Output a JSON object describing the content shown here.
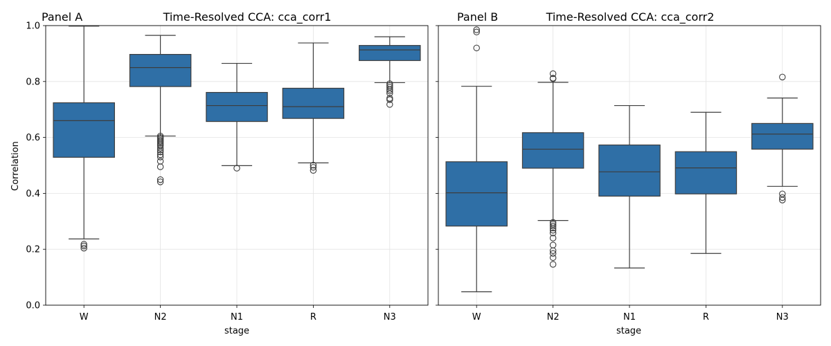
{
  "figure": {
    "panels": [
      "Panel A",
      "Panel B"
    ]
  },
  "chart_data": [
    {
      "type": "box",
      "panel_label": "Panel A",
      "title": "Time-Resolved CCA: cca_corr1",
      "xlabel": "stage",
      "ylabel": "Correlation",
      "categories": [
        "W",
        "N2",
        "N1",
        "R",
        "N3"
      ],
      "ylim": [
        0.0,
        1.0
      ],
      "yticks": [
        "0.0",
        "0.2",
        "0.4",
        "0.6",
        "0.8",
        "1.0"
      ],
      "ytick_values": [
        0.0,
        0.2,
        0.4,
        0.6,
        0.8,
        1.0
      ],
      "grid": true,
      "color": "#2f6fa6",
      "boxes": [
        {
          "stage": "W",
          "whisker_low": 0.237,
          "q1": 0.529,
          "median": 0.66,
          "q3": 0.724,
          "whisker_high": 0.998,
          "outliers": [
            0.218,
            0.212,
            0.204
          ]
        },
        {
          "stage": "N2",
          "whisker_low": 0.605,
          "q1": 0.782,
          "median": 0.85,
          "q3": 0.897,
          "whisker_high": 0.965,
          "outliers": [
            0.605,
            0.6,
            0.595,
            0.59,
            0.585,
            0.58,
            0.575,
            0.57,
            0.562,
            0.555,
            0.548,
            0.538,
            0.53,
            0.515,
            0.495,
            0.449,
            0.441
          ]
        },
        {
          "stage": "N1",
          "whisker_low": 0.499,
          "q1": 0.657,
          "median": 0.714,
          "q3": 0.761,
          "whisker_high": 0.865,
          "outliers": [
            0.49
          ]
        },
        {
          "stage": "R",
          "whisker_low": 0.509,
          "q1": 0.668,
          "median": 0.71,
          "q3": 0.776,
          "whisker_high": 0.938,
          "outliers": [
            0.501,
            0.493,
            0.482
          ]
        },
        {
          "stage": "N3",
          "whisker_low": 0.796,
          "q1": 0.875,
          "median": 0.913,
          "q3": 0.929,
          "whisker_high": 0.96,
          "outliers": [
            0.792,
            0.786,
            0.78,
            0.772,
            0.766,
            0.758,
            0.74,
            0.735,
            0.718
          ]
        }
      ]
    },
    {
      "type": "box",
      "panel_label": "Panel B",
      "title": "Time-Resolved CCA: cca_corr2",
      "xlabel": "stage",
      "ylabel": "",
      "categories": [
        "W",
        "N2",
        "N1",
        "R",
        "N3"
      ],
      "ylim": [
        0.0,
        1.0
      ],
      "yticks": [],
      "ytick_values": [
        0.0,
        0.2,
        0.4,
        0.6,
        0.8,
        1.0
      ],
      "grid": true,
      "color": "#2f6fa6",
      "boxes": [
        {
          "stage": "W",
          "whisker_low": 0.048,
          "q1": 0.283,
          "median": 0.402,
          "q3": 0.513,
          "whisker_high": 0.783,
          "outliers": [
            0.985,
            0.977,
            0.92
          ]
        },
        {
          "stage": "N2",
          "whisker_low": 0.303,
          "q1": 0.49,
          "median": 0.558,
          "q3": 0.617,
          "whisker_high": 0.797,
          "outliers": [
            0.828,
            0.812,
            0.81,
            0.296,
            0.29,
            0.283,
            0.276,
            0.268,
            0.258,
            0.24,
            0.215,
            0.195,
            0.185,
            0.17,
            0.146
          ]
        },
        {
          "stage": "N1",
          "whisker_low": 0.133,
          "q1": 0.39,
          "median": 0.477,
          "q3": 0.573,
          "whisker_high": 0.714,
          "outliers": []
        },
        {
          "stage": "R",
          "whisker_low": 0.185,
          "q1": 0.398,
          "median": 0.491,
          "q3": 0.549,
          "whisker_high": 0.69,
          "outliers": []
        },
        {
          "stage": "N3",
          "whisker_low": 0.425,
          "q1": 0.558,
          "median": 0.612,
          "q3": 0.65,
          "whisker_high": 0.741,
          "outliers": [
            0.816,
            0.398,
            0.385,
            0.376
          ]
        }
      ]
    }
  ]
}
